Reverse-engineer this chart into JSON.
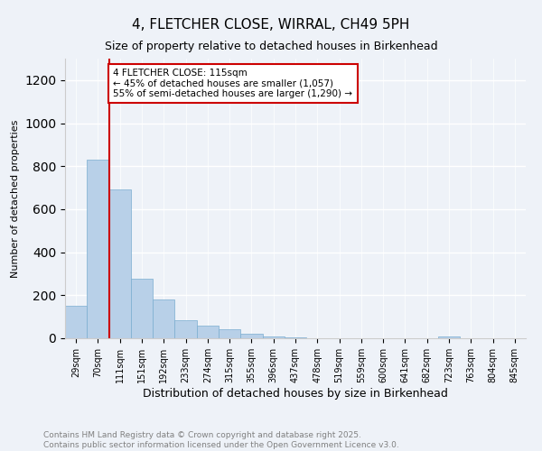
{
  "title_line1": "4, FLETCHER CLOSE, WIRRAL, CH49 5PH",
  "title_line2": "Size of property relative to detached houses in Birkenhead",
  "xlabel": "Distribution of detached houses by size in Birkenhead",
  "ylabel": "Number of detached properties",
  "categories": [
    "29sqm",
    "70sqm",
    "111sqm",
    "151sqm",
    "192sqm",
    "233sqm",
    "274sqm",
    "315sqm",
    "355sqm",
    "396sqm",
    "437sqm",
    "478sqm",
    "519sqm",
    "559sqm",
    "600sqm",
    "641sqm",
    "682sqm",
    "723sqm",
    "763sqm",
    "804sqm",
    "845sqm"
  ],
  "values": [
    152,
    830,
    693,
    277,
    181,
    85,
    57,
    43,
    20,
    8,
    4,
    2,
    2,
    1,
    1,
    0,
    0,
    10,
    0,
    0,
    0
  ],
  "bar_color": "#b8d0e8",
  "bar_edge_color": "#7aadd0",
  "vline_x_index": 2,
  "vline_color": "#cc0000",
  "annotation_text": "4 FLETCHER CLOSE: 115sqm\n← 45% of detached houses are smaller (1,057)\n55% of semi-detached houses are larger (1,290) →",
  "annotation_box_color": "#ffffff",
  "annotation_box_edge_color": "#cc0000",
  "ylim": [
    0,
    1300
  ],
  "yticks": [
    0,
    200,
    400,
    600,
    800,
    1000,
    1200
  ],
  "footer_line1": "Contains HM Land Registry data © Crown copyright and database right 2025.",
  "footer_line2": "Contains public sector information licensed under the Open Government Licence v3.0.",
  "bg_color": "#eef2f8",
  "plot_bg_color": "#eef2f8"
}
